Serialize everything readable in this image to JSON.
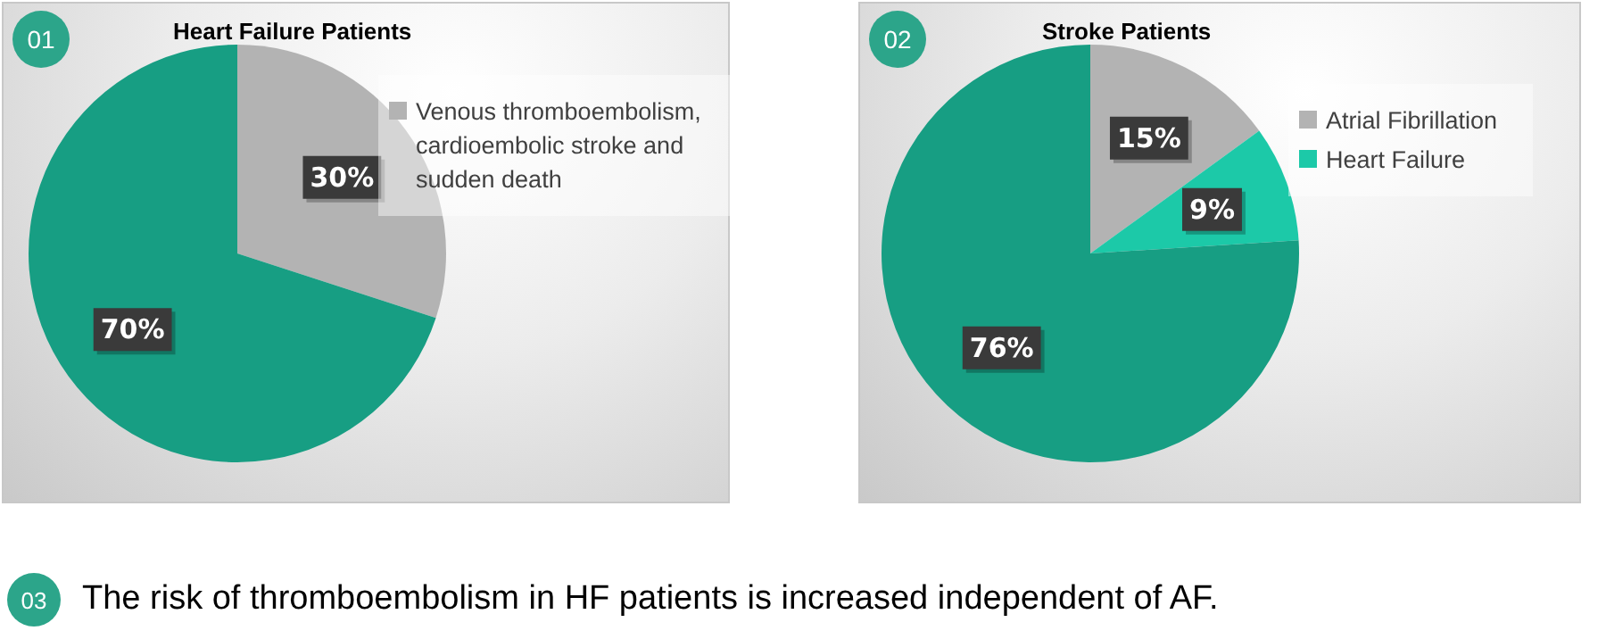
{
  "chart_data": [
    {
      "type": "pie",
      "title": "Heart Failure Patients",
      "categories": [
        "Venous thromboembolism, cardioembolic stroke and sudden death",
        null
      ],
      "values": [
        30,
        70
      ],
      "colors": [
        "#b3b3b3",
        "#179e83"
      ],
      "value_labels": [
        "30%",
        "70%"
      ],
      "legend": "right",
      "annotations": [
        "01"
      ]
    },
    {
      "type": "pie",
      "title": "Stroke Patients",
      "categories": [
        "Atrial Fibrillation",
        "Heart Failure",
        null
      ],
      "values": [
        15,
        9,
        76
      ],
      "colors": [
        "#b3b3b3",
        "#1cc9a8",
        "#179e83"
      ],
      "value_labels": [
        "15%",
        "9%",
        "76%"
      ],
      "legend": "right",
      "annotations": [
        "02"
      ]
    },
    {
      "type": "other",
      "annotations": [
        "03",
        "The risk of thromboembolism in HF patients is increased independent of AF."
      ]
    }
  ]
}
